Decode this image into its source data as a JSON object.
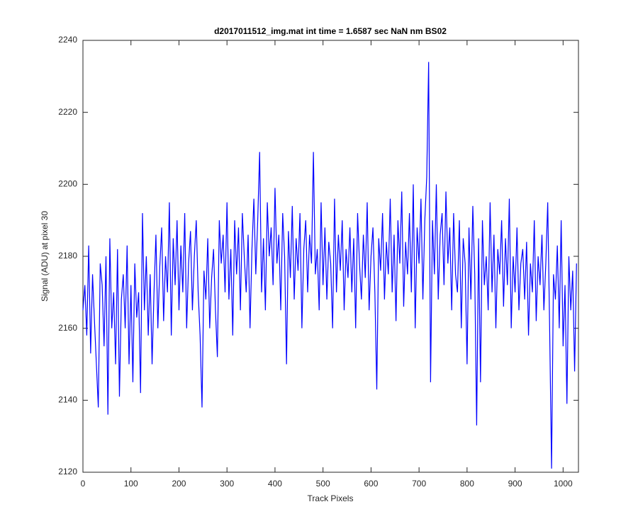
{
  "chart_data": {
    "type": "line",
    "title": "d2017011512_img.mat int time = 1.6587 sec  NaN nm BS02",
    "x_label": "Track Pixels",
    "y_label": "Signal (ADU) at pixel 30",
    "xlim": [
      0,
      1032
    ],
    "ylim": [
      2120,
      2240
    ],
    "xticks": [
      0,
      100,
      200,
      300,
      400,
      500,
      600,
      700,
      800,
      900,
      1000
    ],
    "yticks": [
      2120,
      2140,
      2160,
      2180,
      2200,
      2220,
      2240
    ],
    "x": [
      0,
      4,
      8,
      12,
      16,
      20,
      24,
      28,
      32,
      36,
      40,
      44,
      48,
      52,
      56,
      60,
      64,
      68,
      72,
      76,
      80,
      84,
      88,
      92,
      96,
      100,
      104,
      108,
      112,
      116,
      120,
      124,
      128,
      132,
      136,
      140,
      144,
      148,
      152,
      156,
      160,
      164,
      168,
      172,
      176,
      180,
      184,
      188,
      192,
      196,
      200,
      204,
      208,
      212,
      216,
      220,
      224,
      228,
      232,
      236,
      240,
      244,
      248,
      252,
      256,
      260,
      264,
      268,
      272,
      276,
      280,
      284,
      288,
      292,
      296,
      300,
      304,
      308,
      312,
      316,
      320,
      324,
      328,
      332,
      336,
      340,
      344,
      348,
      352,
      356,
      360,
      364,
      368,
      372,
      376,
      380,
      384,
      388,
      392,
      396,
      400,
      404,
      408,
      412,
      416,
      420,
      424,
      428,
      432,
      436,
      440,
      444,
      448,
      452,
      456,
      460,
      464,
      468,
      472,
      476,
      480,
      484,
      488,
      492,
      496,
      500,
      504,
      508,
      512,
      516,
      520,
      524,
      528,
      532,
      536,
      540,
      544,
      548,
      552,
      556,
      560,
      564,
      568,
      572,
      576,
      580,
      584,
      588,
      592,
      596,
      600,
      604,
      608,
      612,
      616,
      620,
      624,
      628,
      632,
      636,
      640,
      644,
      648,
      652,
      656,
      660,
      664,
      668,
      672,
      676,
      680,
      684,
      688,
      692,
      696,
      700,
      704,
      708,
      712,
      716,
      720,
      724,
      728,
      732,
      736,
      740,
      744,
      748,
      752,
      756,
      760,
      764,
      768,
      772,
      776,
      780,
      784,
      788,
      792,
      796,
      800,
      804,
      808,
      812,
      816,
      820,
      824,
      828,
      832,
      836,
      840,
      844,
      848,
      852,
      856,
      860,
      864,
      868,
      872,
      876,
      880,
      884,
      888,
      892,
      896,
      900,
      904,
      908,
      912,
      916,
      920,
      924,
      928,
      932,
      936,
      940,
      944,
      948,
      952,
      956,
      960,
      964,
      968,
      972,
      976,
      980,
      984,
      988,
      992,
      996,
      1000,
      1004,
      1008,
      1012,
      1016,
      1020,
      1024,
      1028
    ],
    "series": [
      {
        "color": "#0000ff",
        "values": [
          2165,
          2172,
          2158,
          2183,
          2153,
          2175,
          2162,
          2150,
          2138,
          2178,
          2172,
          2155,
          2180,
          2136,
          2185,
          2160,
          2170,
          2150,
          2182,
          2141,
          2168,
          2175,
          2160,
          2183,
          2150,
          2172,
          2145,
          2178,
          2163,
          2170,
          2142,
          2192,
          2165,
          2180,
          2158,
          2175,
          2150,
          2170,
          2186,
          2160,
          2177,
          2188,
          2162,
          2180,
          2170,
          2195,
          2158,
          2185,
          2172,
          2190,
          2165,
          2183,
          2170,
          2192,
          2160,
          2178,
          2187,
          2165,
          2180,
          2190,
          2170,
          2158,
          2138,
          2176,
          2168,
          2185,
          2160,
          2174,
          2182,
          2165,
          2152,
          2190,
          2178,
          2186,
          2170,
          2195,
          2168,
          2182,
          2158,
          2190,
          2175,
          2188,
          2165,
          2192,
          2180,
          2170,
          2186,
          2160,
          2182,
          2196,
          2175,
          2190,
          2209,
          2170,
          2185,
          2165,
          2195,
          2180,
          2188,
          2172,
          2199,
          2178,
          2186,
          2165,
          2192,
          2180,
          2150,
          2187,
          2174,
          2194,
          2168,
          2185,
          2176,
          2192,
          2160,
          2182,
          2190,
          2170,
          2186,
          2178,
          2209,
          2175,
          2182,
          2165,
          2195,
          2172,
          2188,
          2168,
          2184,
          2178,
          2160,
          2196,
          2170,
          2186,
          2176,
          2190,
          2165,
          2182,
          2174,
          2188,
          2170,
          2185,
          2160,
          2192,
          2178,
          2168,
          2186,
          2174,
          2195,
          2165,
          2180,
          2188,
          2170,
          2143,
          2185,
          2176,
          2192,
          2168,
          2184,
          2175,
          2196,
          2170,
          2186,
          2162,
          2190,
          2178,
          2198,
          2166,
          2184,
          2175,
          2192,
          2170,
          2200,
          2160,
          2188,
          2178,
          2196,
          2168,
          2190,
          2202,
          2234,
          2145,
          2190,
          2175,
          2200,
          2168,
          2186,
          2192,
          2172,
          2198,
          2178,
          2188,
          2165,
          2192,
          2175,
          2170,
          2190,
          2160,
          2185,
          2178,
          2150,
          2188,
          2168,
          2194,
          2175,
          2133,
          2185,
          2145,
          2190,
          2172,
          2180,
          2165,
          2195,
          2170,
          2186,
          2160,
          2182,
          2175,
          2190,
          2166,
          2185,
          2172,
          2196,
          2160,
          2180,
          2170,
          2188,
          2165,
          2178,
          2182,
          2168,
          2184,
          2158,
          2178,
          2170,
          2190,
          2162,
          2180,
          2172,
          2186,
          2165,
          2178,
          2195,
          2160,
          2121,
          2175,
          2168,
          2183,
          2160,
          2190,
          2155,
          2172,
          2139,
          2180,
          2165,
          2176,
          2148,
          2178
        ]
      }
    ]
  }
}
